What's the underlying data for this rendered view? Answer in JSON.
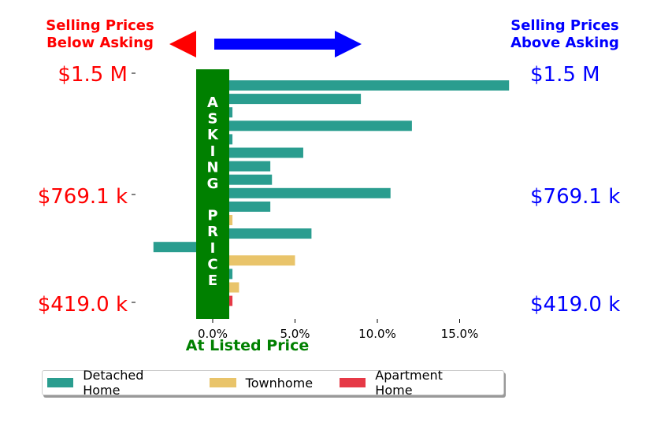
{
  "chart_data": {
    "type": "bar",
    "orientation": "horizontal",
    "header_left": [
      "Selling Prices",
      "Below Asking"
    ],
    "header_right": [
      "Selling Prices",
      "Above Asking"
    ],
    "xlabel": "At Listed Price",
    "center_band_label": "ASKING PRICE",
    "xlim": [
      -5,
      18
    ],
    "x_ticks": [
      0,
      5,
      10,
      15
    ],
    "x_tick_labels": [
      "0.0%",
      "5.0%",
      "10.0%",
      "15.0%"
    ],
    "y_labels_left": [
      "$1.5 M",
      "$769.1 k",
      "$419.0 k"
    ],
    "y_labels_right": [
      "$1.5 M",
      "$769.1 k",
      "$419.0 k"
    ],
    "colors": {
      "detached": "#2a9d8f",
      "townhome": "#e9c46a",
      "apartment": "#e63946",
      "band": "#008000",
      "below": "#ff0000",
      "above": "#0000ff"
    },
    "bars": [
      {
        "category": "Detached Home",
        "value": 18.0
      },
      {
        "category": "Detached Home",
        "value": 9.0
      },
      {
        "category": "Detached Home",
        "value": 1.2
      },
      {
        "category": "Detached Home",
        "value": 12.1
      },
      {
        "category": "Detached Home",
        "value": 1.2
      },
      {
        "category": "Detached Home",
        "value": 5.5
      },
      {
        "category": "Detached Home",
        "value": 3.5
      },
      {
        "category": "Detached Home",
        "value": 3.6
      },
      {
        "category": "Detached Home",
        "value": 10.8
      },
      {
        "category": "Detached Home",
        "value": 3.5
      },
      {
        "category": "Townhome",
        "value": 1.2
      },
      {
        "category": "Detached Home",
        "value": 6.0
      },
      {
        "category": "Detached Home",
        "value": -3.6
      },
      {
        "category": "Townhome",
        "value": 5.0
      },
      {
        "category": "Detached Home",
        "value": 1.2
      },
      {
        "category": "Townhome",
        "value": 1.6
      },
      {
        "category": "Apartment Home",
        "value": 1.2
      }
    ],
    "legend": [
      {
        "label": "Detached Home",
        "color": "#2a9d8f"
      },
      {
        "label": "Townhome",
        "color": "#e9c46a"
      },
      {
        "label": "Apartment Home",
        "color": "#e63946"
      }
    ],
    "legend_placement": "bottom-center",
    "grid": false
  }
}
